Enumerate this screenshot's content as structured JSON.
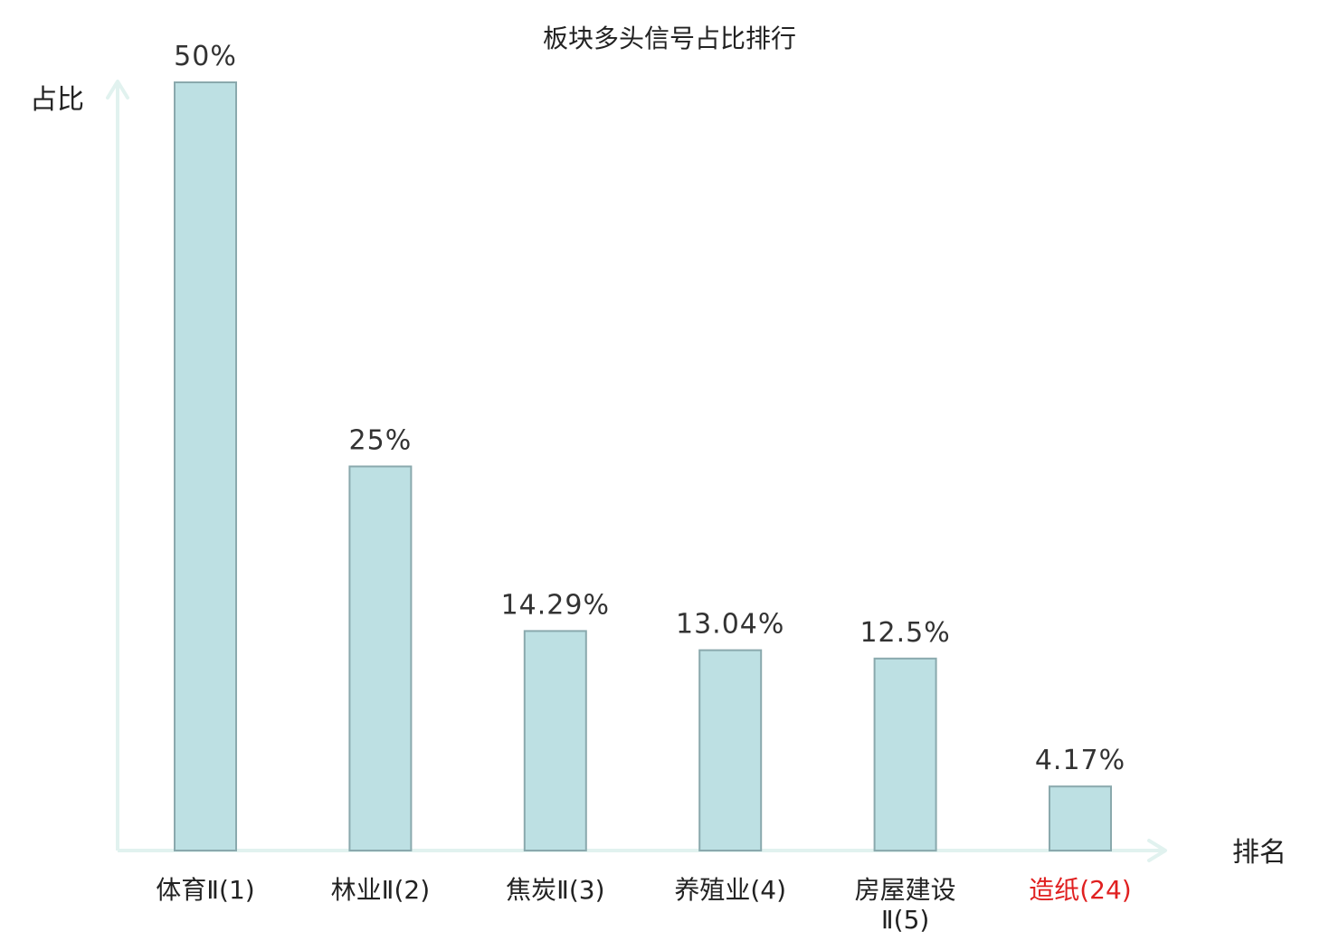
{
  "chart_data": {
    "type": "bar",
    "title": "板块多头信号占比排行",
    "ylabel": "占比",
    "xlabel": "排名",
    "categories": [
      "体育Ⅱ(1)",
      "林业Ⅱ(2)",
      "焦炭Ⅱ(3)",
      "养殖业(4)",
      "房屋建设Ⅱ(5)",
      "造纸(24)"
    ],
    "category_label_lines": [
      [
        "体育Ⅱ(1)"
      ],
      [
        "林业Ⅱ(2)"
      ],
      [
        "焦炭Ⅱ(3)"
      ],
      [
        "养殖业(4)"
      ],
      [
        "房屋建设",
        "Ⅱ(5)"
      ],
      [
        "造纸(24)"
      ]
    ],
    "values": [
      50,
      25,
      14.29,
      13.04,
      12.5,
      4.17
    ],
    "value_labels": [
      "50%",
      "25%",
      "14.29%",
      "13.04%",
      "12.5%",
      "4.17%"
    ],
    "highlight_index": 5,
    "ylim": [
      0,
      50
    ],
    "grid": false,
    "legend": "none",
    "colors": {
      "bar_fill": "#bde0e3",
      "bar_stroke": "#8aa9ad",
      "axis": "#e1f2ef",
      "text": "#222222",
      "highlight_text": "#e02020"
    }
  }
}
